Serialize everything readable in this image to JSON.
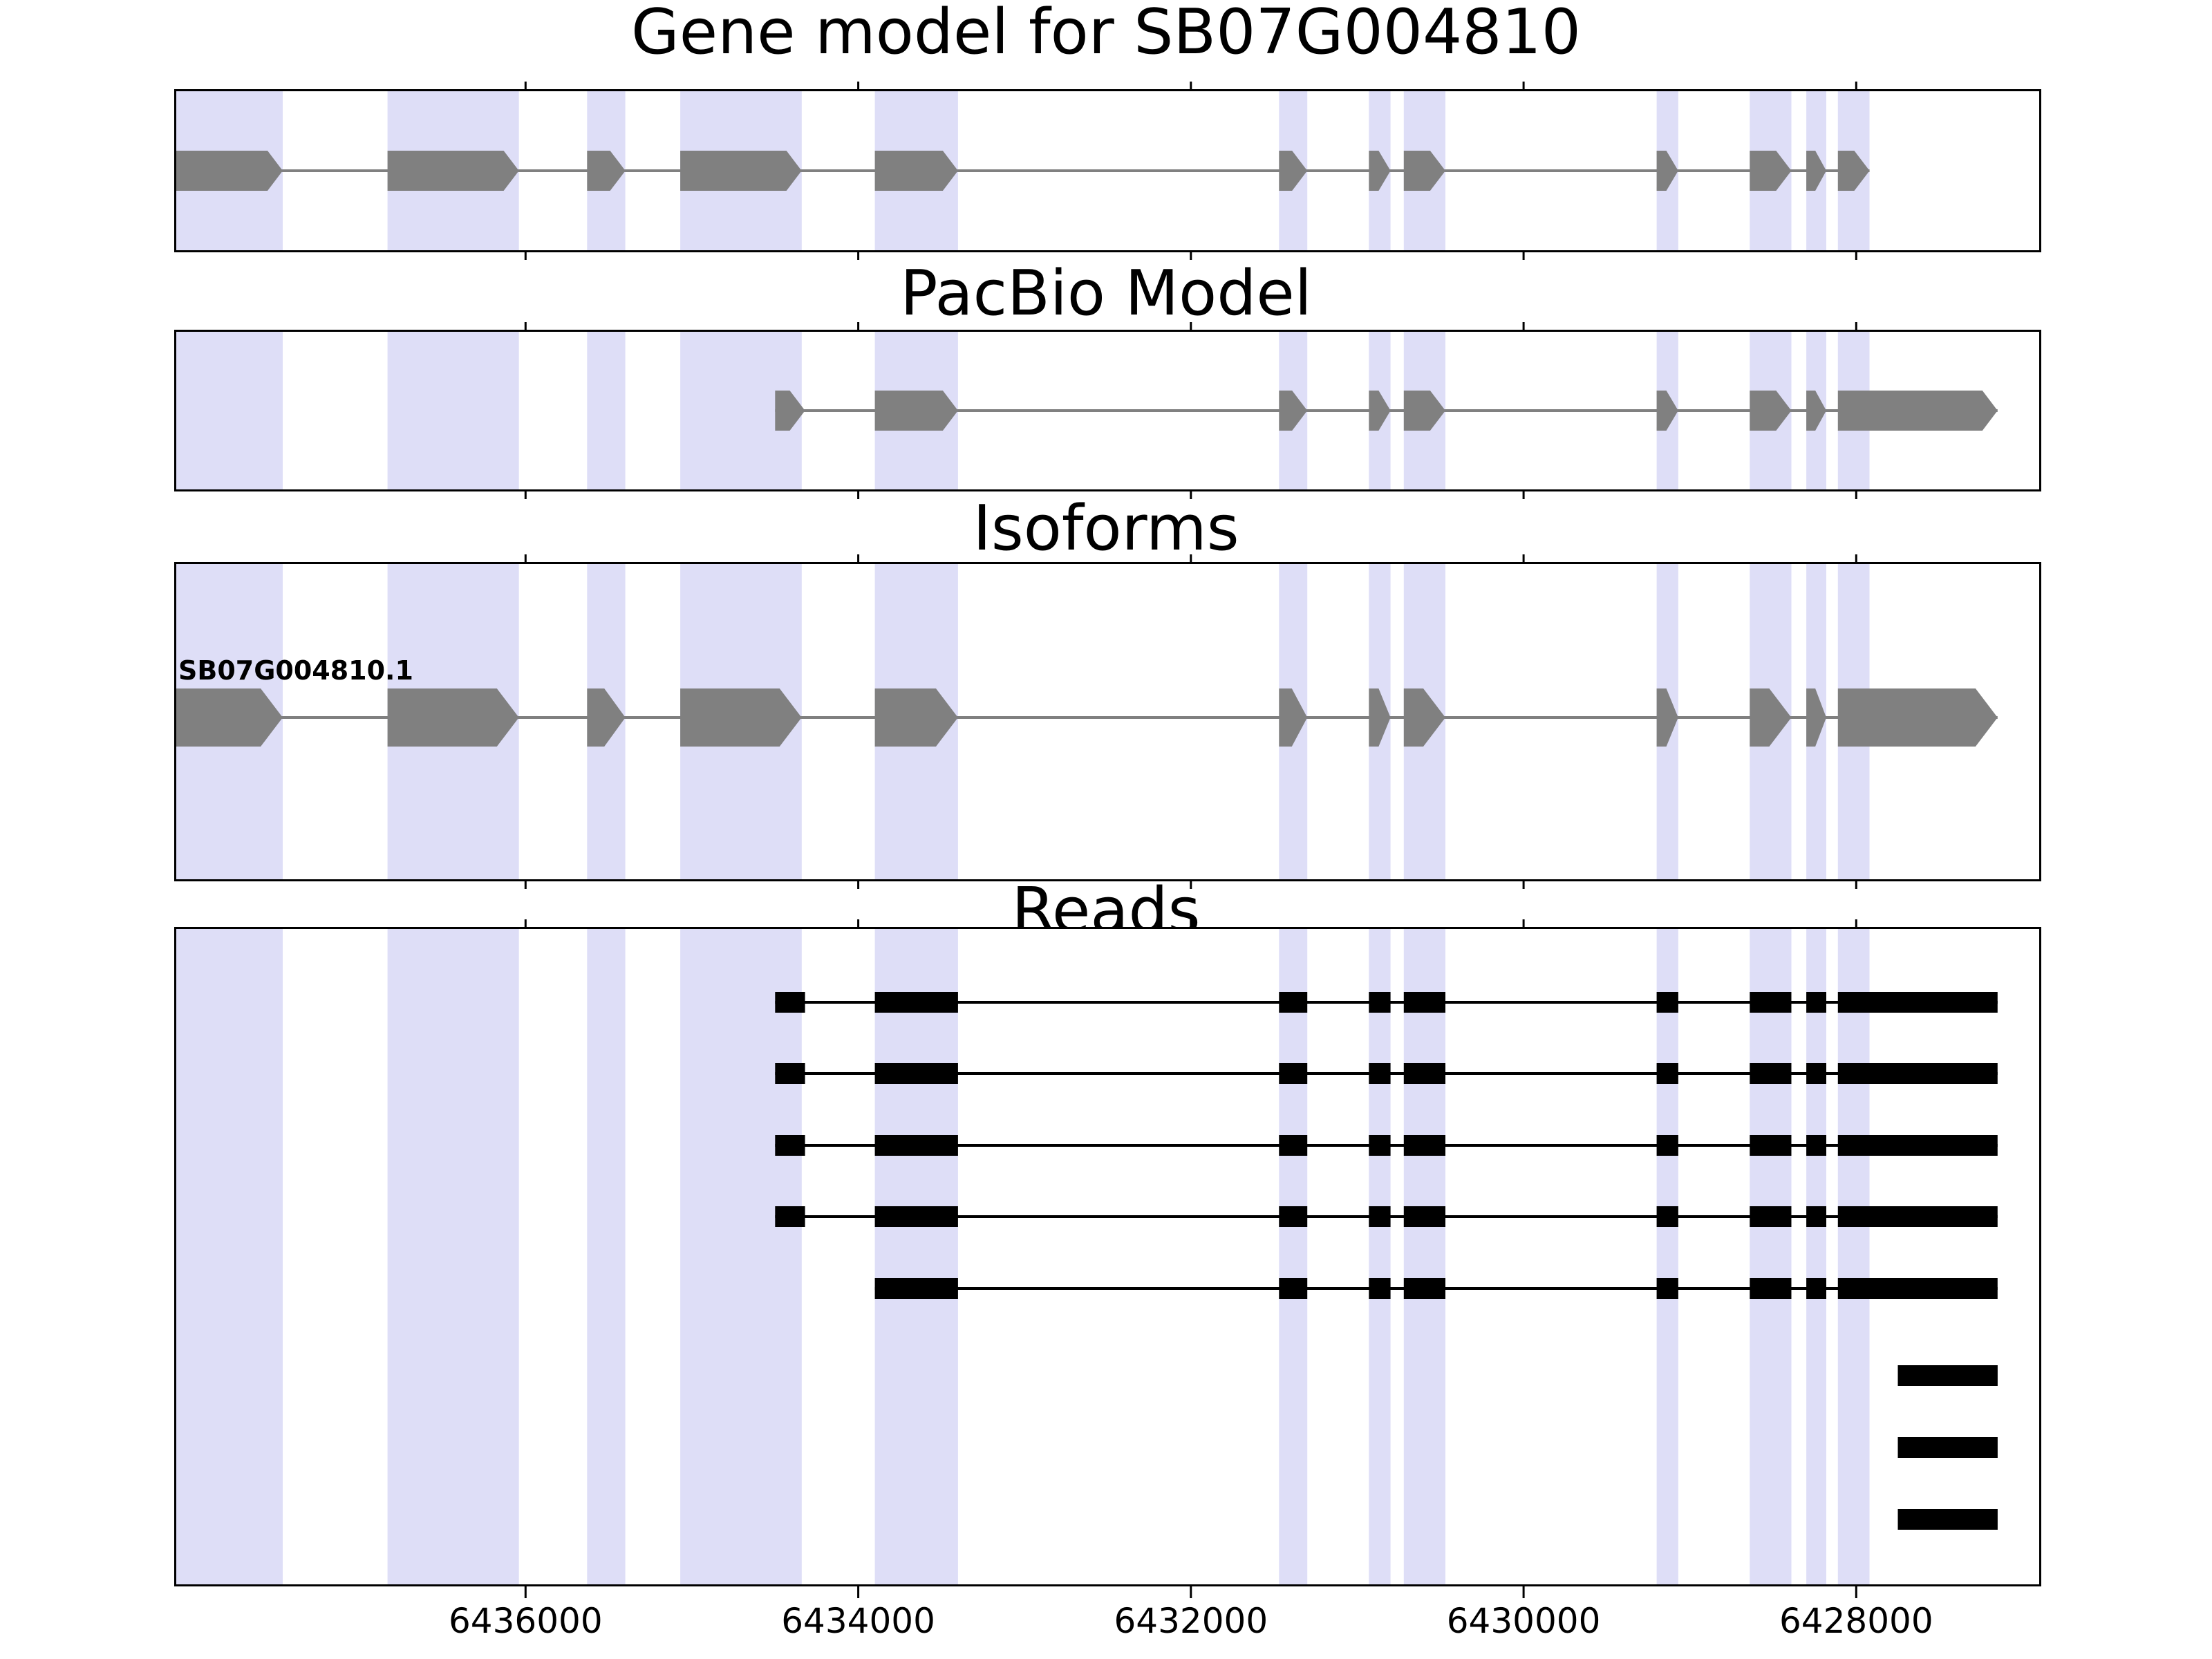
{
  "colors": {
    "background": "#ffffff",
    "band": "#dedef7",
    "gray_feature": "#808080",
    "black_feature": "#000000",
    "panel_border": "#000000",
    "tick": "#000000"
  },
  "chart_data": {
    "type": "genome-tracks",
    "title": "Gene model for SB07G004810",
    "xlim": [
      6438100,
      6426900
    ],
    "xticks": [
      6436000,
      6434000,
      6432000,
      6430000,
      6428000
    ],
    "xtick_labels": [
      "6436000",
      "6434000",
      "6432000",
      "6430000",
      "6428000"
    ],
    "highlight_regions": [
      [
        6438100,
        6437460
      ],
      [
        6436830,
        6436040
      ],
      [
        6435630,
        6435400
      ],
      [
        6435070,
        6434340
      ],
      [
        6433900,
        6433400
      ],
      [
        6431470,
        6431300
      ],
      [
        6430930,
        6430800
      ],
      [
        6430720,
        6430470
      ],
      [
        6429200,
        6429070
      ],
      [
        6428640,
        6428390
      ],
      [
        6428300,
        6428180
      ],
      [
        6428110,
        6427920
      ]
    ],
    "panels": [
      {
        "title": "Gene model for SB07G004810",
        "glyph": "arrow",
        "color": "#808080",
        "tracks": [
          {
            "label": "",
            "exons": [
              [
                6438100,
                6437460
              ],
              [
                6436830,
                6436040
              ],
              [
                6435630,
                6435400
              ],
              [
                6435070,
                6434340
              ],
              [
                6433900,
                6433400
              ],
              [
                6431470,
                6431300
              ],
              [
                6430930,
                6430800
              ],
              [
                6430720,
                6430470
              ],
              [
                6429200,
                6429070
              ],
              [
                6428640,
                6428390
              ],
              [
                6428300,
                6428180
              ],
              [
                6428110,
                6427920
              ]
            ]
          }
        ]
      },
      {
        "title": "PacBio Model",
        "glyph": "arrow",
        "color": "#808080",
        "tracks": [
          {
            "label": "",
            "exons": [
              [
                6434500,
                6434320
              ],
              [
                6433900,
                6433400
              ],
              [
                6431470,
                6431300
              ],
              [
                6430930,
                6430800
              ],
              [
                6430720,
                6430470
              ],
              [
                6429200,
                6429070
              ],
              [
                6428640,
                6428390
              ],
              [
                6428300,
                6428180
              ],
              [
                6428110,
                6427150
              ]
            ]
          }
        ]
      },
      {
        "title": "Isoforms",
        "glyph": "arrow",
        "color": "#808080",
        "tracks": [
          {
            "label": "SB07G004810.1",
            "exons": [
              [
                6438100,
                6437460
              ],
              [
                6436830,
                6436040
              ],
              [
                6435630,
                6435400
              ],
              [
                6435070,
                6434340
              ],
              [
                6433900,
                6433400
              ],
              [
                6431470,
                6431300
              ],
              [
                6430930,
                6430800
              ],
              [
                6430720,
                6430470
              ],
              [
                6429200,
                6429070
              ],
              [
                6428640,
                6428390
              ],
              [
                6428300,
                6428180
              ],
              [
                6428110,
                6427150
              ]
            ]
          }
        ]
      },
      {
        "title": "Reads",
        "glyph": "rect",
        "color": "#000000",
        "tracks": [
          {
            "label": "",
            "exons": [
              [
                6434500,
                6434320
              ],
              [
                6433900,
                6433400
              ],
              [
                6431470,
                6431300
              ],
              [
                6430930,
                6430800
              ],
              [
                6430720,
                6430470
              ],
              [
                6429200,
                6429070
              ],
              [
                6428640,
                6428390
              ],
              [
                6428300,
                6428180
              ],
              [
                6428110,
                6427150
              ]
            ]
          },
          {
            "label": "",
            "exons": [
              [
                6434500,
                6434320
              ],
              [
                6433900,
                6433400
              ],
              [
                6431470,
                6431300
              ],
              [
                6430930,
                6430800
              ],
              [
                6430720,
                6430470
              ],
              [
                6429200,
                6429070
              ],
              [
                6428640,
                6428390
              ],
              [
                6428300,
                6428180
              ],
              [
                6428110,
                6427150
              ]
            ]
          },
          {
            "label": "",
            "exons": [
              [
                6434500,
                6434320
              ],
              [
                6433900,
                6433400
              ],
              [
                6431470,
                6431300
              ],
              [
                6430930,
                6430800
              ],
              [
                6430720,
                6430470
              ],
              [
                6429200,
                6429070
              ],
              [
                6428640,
                6428390
              ],
              [
                6428300,
                6428180
              ],
              [
                6428110,
                6427150
              ]
            ]
          },
          {
            "label": "",
            "exons": [
              [
                6434500,
                6434320
              ],
              [
                6433900,
                6433400
              ],
              [
                6431470,
                6431300
              ],
              [
                6430930,
                6430800
              ],
              [
                6430720,
                6430470
              ],
              [
                6429200,
                6429070
              ],
              [
                6428640,
                6428390
              ],
              [
                6428300,
                6428180
              ],
              [
                6428110,
                6427150
              ]
            ]
          },
          {
            "label": "",
            "exons": [
              [
                6433900,
                6433400
              ],
              [
                6431470,
                6431300
              ],
              [
                6430930,
                6430800
              ],
              [
                6430720,
                6430470
              ],
              [
                6429200,
                6429070
              ],
              [
                6428640,
                6428390
              ],
              [
                6428300,
                6428180
              ],
              [
                6428110,
                6427150
              ]
            ]
          },
          {
            "label": "",
            "exons": [
              [
                6427750,
                6427150
              ]
            ]
          },
          {
            "label": "",
            "exons": [
              [
                6427750,
                6427150
              ]
            ]
          },
          {
            "label": "",
            "exons": [
              [
                6427750,
                6427150
              ]
            ]
          }
        ]
      }
    ]
  }
}
